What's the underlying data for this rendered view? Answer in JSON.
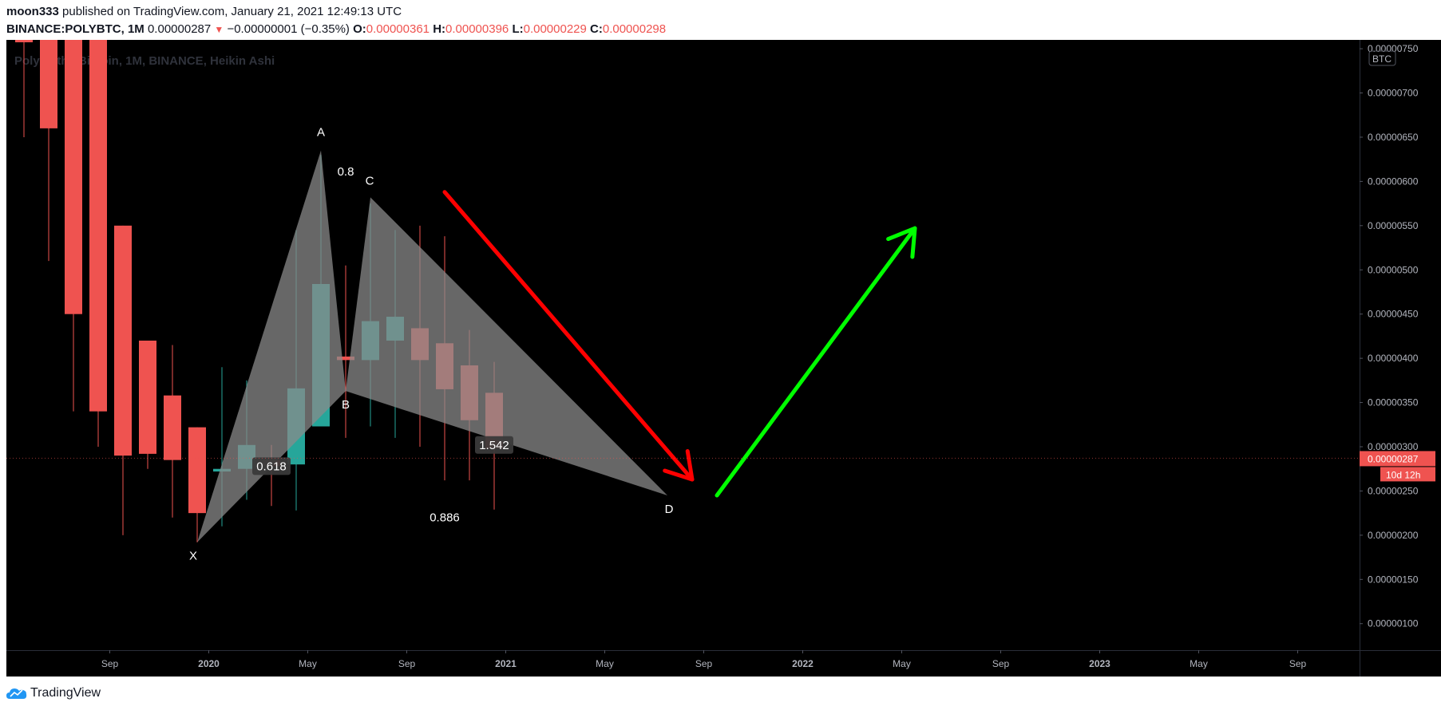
{
  "header": {
    "author": "moon333",
    "published_text": "published on TradingView.com, January 21, 2021 12:49:13 UTC",
    "symbol": "BINANCE:POLYBTC, 1M",
    "last": "0.00000287",
    "change": "−0.00000001 (−0.35%)",
    "o_label": "O:",
    "o_value": "0.00000361",
    "h_label": "H:",
    "h_value": "0.00000396",
    "l_label": "L:",
    "l_value": "0.00000229",
    "c_label": "C:",
    "c_value": "0.00000298"
  },
  "footer": {
    "brand": "TradingView"
  },
  "colors": {
    "background": "#000000",
    "bear": "#ef5350",
    "bull": "#26a69a",
    "pattern_fill": "#8a8a8a",
    "arrow_down": "#ff0000",
    "arrow_up": "#00ff00",
    "axis_text": "#b2b5be"
  },
  "chart_data": {
    "type": "candlestick",
    "watermark": "Polymath / Bitcoin, 1M, BINANCE, Heikin Ashi",
    "currency_badge": "BTC",
    "price_label": "0.00000287",
    "countdown_label": "10d 12h",
    "ylim": [
      7e-07,
      7.6e-06
    ],
    "y_ticks": [
      "0.00000100",
      "0.00000150",
      "0.00000200",
      "0.00000250",
      "0.00000300",
      "0.00000350",
      "0.00000400",
      "0.00000450",
      "0.00000500",
      "0.00000550",
      "0.00000600",
      "0.00000650",
      "0.00000700",
      "0.00000750"
    ],
    "x_ticks": [
      "Sep",
      "2020",
      "May",
      "Sep",
      "2021",
      "May",
      "Sep",
      "2022",
      "May",
      "Sep",
      "2023",
      "May",
      "Sep"
    ],
    "candles": [
      {
        "month": "2019-06",
        "open": 9.9e-06,
        "high": 9.9e-06,
        "low": 6.5e-06,
        "close": 9.9e-06,
        "dir": "bear"
      },
      {
        "month": "2019-07",
        "open": 9e-06,
        "high": 9e-06,
        "low": 5.1e-06,
        "close": 6.6e-06,
        "dir": "bear"
      },
      {
        "month": "2019-08",
        "open": 8.5e-06,
        "high": 8.5e-06,
        "low": 3.4e-06,
        "close": 4.5e-06,
        "dir": "bear"
      },
      {
        "month": "2019-09",
        "open": 7.6e-06,
        "high": 7.6e-06,
        "low": 3e-06,
        "close": 3.4e-06,
        "dir": "bear"
      },
      {
        "month": "2019-10",
        "open": 5.5e-06,
        "high": 5.5e-06,
        "low": 2e-06,
        "close": 2.9e-06,
        "dir": "bear"
      },
      {
        "month": "2019-11",
        "open": 4.2e-06,
        "high": 4.2e-06,
        "low": 2.75e-06,
        "close": 2.92e-06,
        "dir": "bear"
      },
      {
        "month": "2019-12",
        "open": 3.58e-06,
        "high": 4.15e-06,
        "low": 2.2e-06,
        "close": 2.85e-06,
        "dir": "bear"
      },
      {
        "month": "2020-01",
        "open": 3.22e-06,
        "high": 3.22e-06,
        "low": 1.92e-06,
        "close": 2.25e-06,
        "dir": "bear"
      },
      {
        "month": "2020-02",
        "open": 2.72e-06,
        "high": 3.9e-06,
        "low": 2.1e-06,
        "close": 2.75e-06,
        "dir": "bull"
      },
      {
        "month": "2020-03",
        "open": 2.75e-06,
        "high": 3.75e-06,
        "low": 2.4e-06,
        "close": 3.02e-06,
        "dir": "bull"
      },
      {
        "month": "2020-04",
        "open": 2.85e-06,
        "high": 3.02e-06,
        "low": 2.33e-06,
        "close": 2.78e-06,
        "dir": "bear"
      },
      {
        "month": "2020-05",
        "open": 2.8e-06,
        "high": 5.45e-06,
        "low": 2.28e-06,
        "close": 3.66e-06,
        "dir": "bull"
      },
      {
        "month": "2020-06",
        "open": 3.23e-06,
        "high": 6.3e-06,
        "low": 3.23e-06,
        "close": 4.84e-06,
        "dir": "bull"
      },
      {
        "month": "2020-07",
        "open": 4.02e-06,
        "high": 5.05e-06,
        "low": 3.1e-06,
        "close": 3.98e-06,
        "dir": "bear"
      },
      {
        "month": "2020-08",
        "open": 3.98e-06,
        "high": 5.75e-06,
        "low": 3.23e-06,
        "close": 4.42e-06,
        "dir": "bull"
      },
      {
        "month": "2020-09",
        "open": 4.2e-06,
        "high": 5.45e-06,
        "low": 3.1e-06,
        "close": 4.47e-06,
        "dir": "bull"
      },
      {
        "month": "2020-10",
        "open": 4.34e-06,
        "high": 5.5e-06,
        "low": 3e-06,
        "close": 3.98e-06,
        "dir": "bear"
      },
      {
        "month": "2020-11",
        "open": 4.17e-06,
        "high": 5.38e-06,
        "low": 2.62e-06,
        "close": 3.65e-06,
        "dir": "bear"
      },
      {
        "month": "2020-12",
        "open": 3.92e-06,
        "high": 4.32e-06,
        "low": 2.62e-06,
        "close": 3.3e-06,
        "dir": "bear"
      },
      {
        "month": "2021-01",
        "open": 3.61e-06,
        "high": 3.96e-06,
        "low": 2.29e-06,
        "close": 2.98e-06,
        "dir": "bear"
      }
    ],
    "pattern": {
      "name": "XABCD",
      "points": [
        {
          "label": "X",
          "month": "2020-01",
          "price": 1.92e-06
        },
        {
          "label": "A",
          "month": "2020-06",
          "price": 6.35e-06
        },
        {
          "label": "B",
          "month": "2020-07",
          "price": 3.63e-06
        },
        {
          "label": "C",
          "month": "2020-08",
          "price": 5.82e-06
        },
        {
          "label": "D",
          "month": "2021-08",
          "price": 2.45e-06
        }
      ],
      "ratios": [
        {
          "text": "0.618",
          "month": "2020-04",
          "price": 2.78e-06
        },
        {
          "text": "0.8",
          "month": "2020-07",
          "price": 6.11e-06
        },
        {
          "text": "1.542",
          "month": "2021-01",
          "price": 3.02e-06
        },
        {
          "text": "0.886",
          "month": "2020-11",
          "price": 2.2e-06
        }
      ]
    },
    "arrows": [
      {
        "name": "down-arrow",
        "color": "down",
        "from": {
          "month": "2020-11",
          "price": 5.88e-06
        },
        "to": {
          "month": "2021-09",
          "price": 2.63e-06
        }
      },
      {
        "name": "up-arrow",
        "color": "up",
        "from": {
          "month": "2021-10",
          "price": 2.45e-06
        },
        "to": {
          "month": "2022-06",
          "price": 5.47e-06
        }
      }
    ]
  }
}
